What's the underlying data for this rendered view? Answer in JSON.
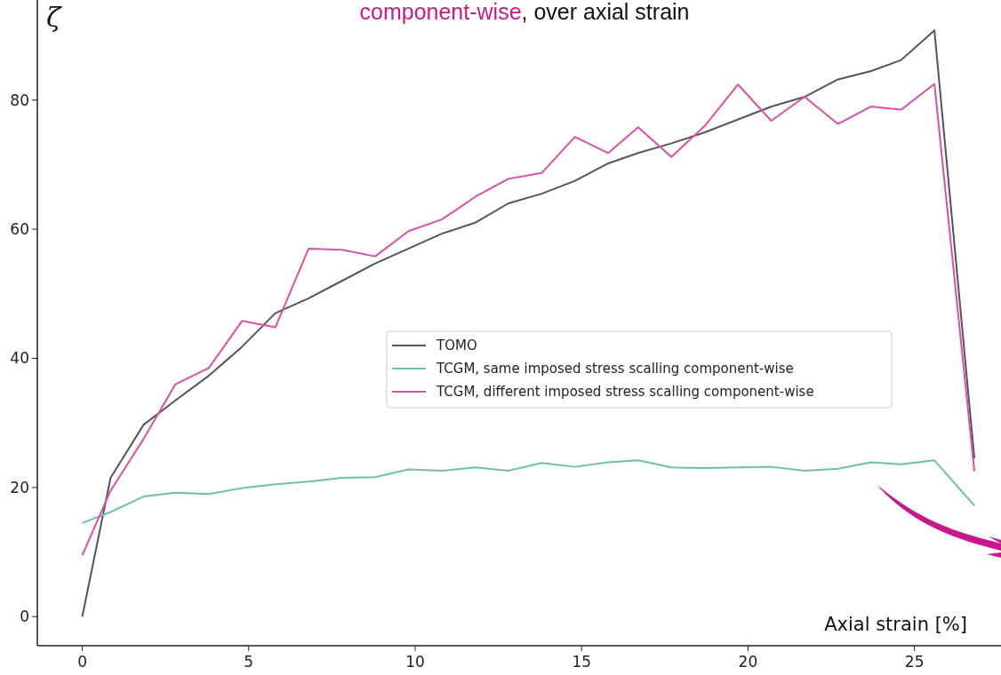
{
  "chart_data": {
    "type": "line",
    "title": "component-wise, over axial strain",
    "xlabel": "Axial strain [%]",
    "ylabel": "ζ",
    "x": [
      0,
      0.85,
      1.84,
      2.8,
      3.8,
      4.8,
      5.8,
      6.8,
      7.8,
      8.8,
      9.8,
      10.8,
      11.8,
      12.8,
      13.8,
      14.8,
      15.8,
      16.7,
      17.7,
      18.7,
      19.7,
      20.7,
      21.7,
      22.7,
      23.7,
      24.6,
      25.6,
      26.8
    ],
    "series": [
      {
        "name": "TOMO",
        "color": "#555555",
        "values": [
          0,
          21.5,
          29.7,
          33.5,
          37.3,
          41.8,
          47,
          49.3,
          52,
          54.7,
          57,
          59.3,
          61,
          64,
          65.5,
          67.5,
          70.2,
          71.8,
          73.3,
          75,
          77,
          79,
          80.5,
          83.2,
          84.5,
          86.2,
          90.8,
          24.5
        ]
      },
      {
        "name": "TCGM, same imposed stress scalling component-wise",
        "color": "#6dc2a3",
        "values": [
          14.5,
          16.2,
          18.6,
          19.2,
          19,
          19.9,
          20.5,
          20.9,
          21.5,
          21.6,
          22.8,
          22.6,
          23.1,
          22.6,
          23.8,
          23.2,
          23.9,
          24.2,
          23.1,
          23,
          23.1,
          23.2,
          22.6,
          22.9,
          23.9,
          23.6,
          24.2,
          17.2
        ]
      },
      {
        "name": "TCGM, different imposed stress scalling component-wise",
        "color": "#dd4fa6",
        "values": [
          9.5,
          19.5,
          27.5,
          36,
          38.5,
          45.8,
          44.8,
          57,
          56.8,
          55.8,
          59.7,
          61.5,
          65,
          67.8,
          68.7,
          74.3,
          71.8,
          75.8,
          71.2,
          76,
          82.4,
          76.8,
          80.5,
          76.3,
          79,
          78.5,
          82.5,
          22.5
        ]
      }
    ],
    "xlim": [
      -1.35,
      27.6
    ],
    "ylim": [
      -4.5,
      95.5
    ],
    "xticks": [
      0,
      5,
      10,
      15,
      20,
      25
    ],
    "yticks": [
      0,
      20,
      40,
      60,
      80
    ],
    "grid": false,
    "legend": "center",
    "marker": "none",
    "line_style": "solid"
  }
}
